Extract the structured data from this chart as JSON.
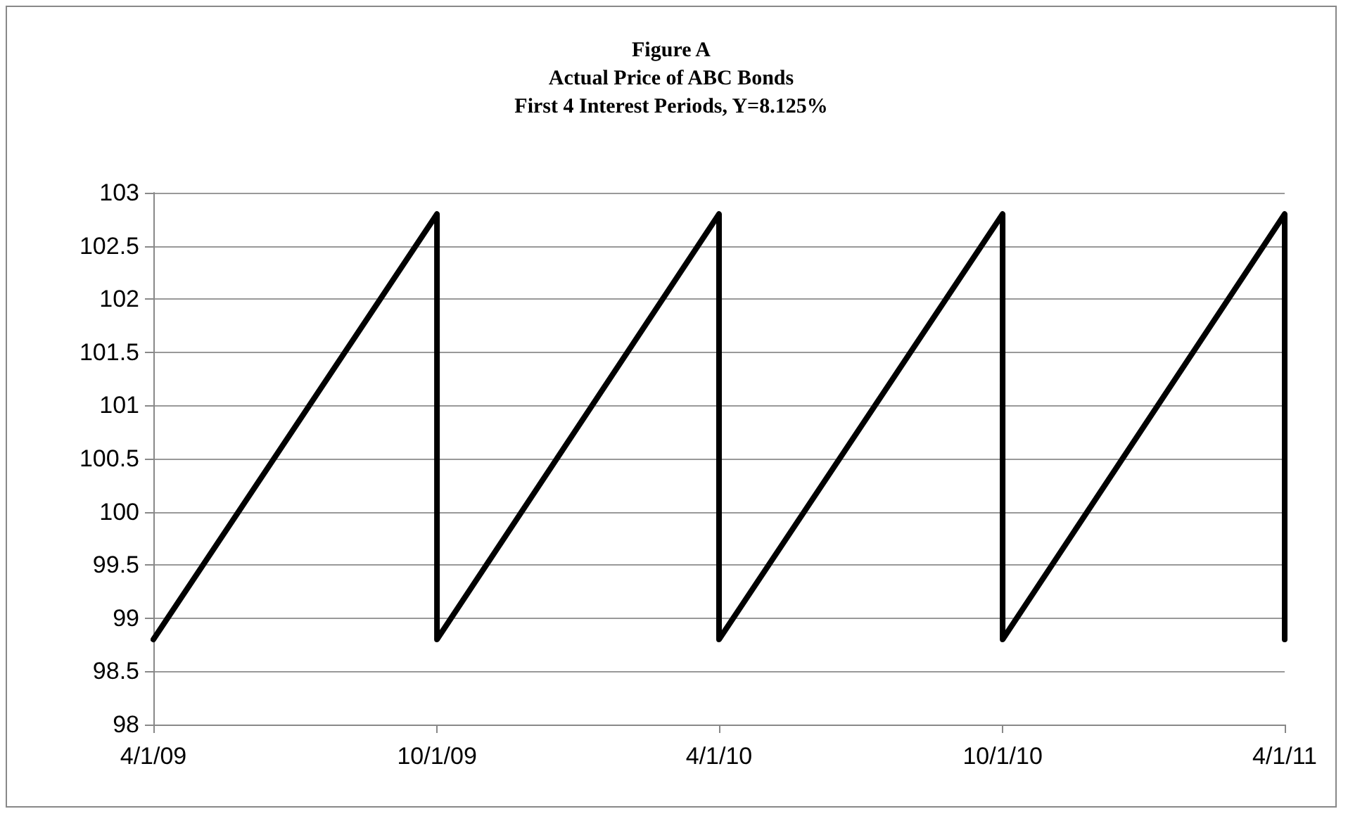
{
  "chart_data": {
    "type": "line",
    "title": "Figure A\nActual Price of ABC Bonds\nFirst 4 Interest Periods, Y=8.125%",
    "x": [
      "2009-04-01",
      "2009-10-01",
      "2009-10-01",
      "2010-04-01",
      "2010-04-01",
      "2010-10-01",
      "2010-10-01",
      "2011-04-01",
      "2011-04-01"
    ],
    "series": [
      {
        "color": "#000000",
        "values": [
          98.8,
          102.8,
          98.8,
          102.8,
          98.8,
          102.8,
          98.8,
          102.8,
          98.8
        ]
      }
    ],
    "xlim": [
      "2009-04-01",
      "2011-04-01"
    ],
    "xticks": [
      {
        "value": "2009-04-01",
        "label": "4/1/09"
      },
      {
        "value": "2009-10-01",
        "label": "10/1/09"
      },
      {
        "value": "2010-04-01",
        "label": "4/1/10"
      },
      {
        "value": "2010-10-01",
        "label": "10/1/10"
      },
      {
        "value": "2011-04-01",
        "label": "4/1/11"
      }
    ],
    "ylim": [
      98,
      103
    ],
    "yticks": [
      98,
      98.5,
      99,
      99.5,
      100,
      100.5,
      101,
      101.5,
      102,
      102.5,
      103
    ],
    "grid": "y",
    "marker": "none",
    "line_style": "solid"
  }
}
